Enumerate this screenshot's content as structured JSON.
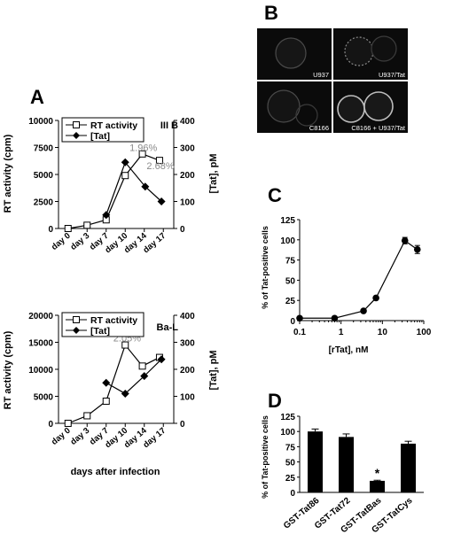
{
  "panels": {
    "A": {
      "label": "A"
    },
    "B": {
      "label": "B",
      "images": [
        "U937",
        "U937/Tat",
        "C8166",
        "C8166 + U937/Tat"
      ]
    },
    "C": {
      "label": "C"
    },
    "D": {
      "label": "D"
    }
  },
  "chart_data": [
    {
      "id": "A-top",
      "type": "line",
      "title": "III B",
      "categories": [
        "day 0",
        "day 3",
        "day 7",
        "day 10",
        "day 14",
        "day 17"
      ],
      "ylabel": "RT activity (cpm)",
      "ylim": [
        0,
        10000
      ],
      "yticks": [
        0,
        2500,
        5000,
        7500,
        10000
      ],
      "y2label": "[Tat], pM",
      "y2lim": [
        0,
        400
      ],
      "y2ticks": [
        0,
        100,
        200,
        300,
        400
      ],
      "legend": "top-left",
      "series": [
        {
          "name": "RT activity",
          "axis": "left",
          "marker": "open-square",
          "x": [
            0,
            1,
            2,
            3,
            3.9,
            4.8
          ],
          "values": [
            0,
            300,
            800,
            4900,
            6900,
            6300
          ]
        },
        {
          "name": "[Tat]",
          "axis": "right",
          "marker": "filled-diamond",
          "x": [
            2,
            3,
            4.05,
            4.9
          ],
          "values": [
            50,
            245,
            155,
            100
          ]
        }
      ],
      "annotations": [
        {
          "text": "1.96%",
          "x": 3.95,
          "y": 7500
        },
        {
          "text": "2.68%",
          "x": 4.85,
          "y": 5800
        }
      ]
    },
    {
      "id": "A-bottom",
      "type": "line",
      "title": "Ba-L",
      "categories": [
        "day 0",
        "day 3",
        "day 7",
        "day 10",
        "day 14",
        "day 17"
      ],
      "xlabel": "days after infection",
      "ylabel": "RT activity (cpm)",
      "ylim": [
        0,
        20000
      ],
      "yticks": [
        0,
        5000,
        10000,
        15000,
        20000
      ],
      "y2label": "[Tat], pM",
      "y2lim": [
        0,
        400
      ],
      "y2ticks": [
        0,
        100,
        200,
        300,
        400
      ],
      "legend": "top-left",
      "series": [
        {
          "name": "RT activity",
          "axis": "left",
          "marker": "open-square",
          "x": [
            0,
            1,
            2,
            3,
            3.9,
            4.8
          ],
          "values": [
            0,
            1400,
            4100,
            14500,
            10600,
            12200
          ]
        },
        {
          "name": "[Tat]",
          "axis": "right",
          "marker": "filled-diamond",
          "x": [
            2,
            3,
            4,
            4.9
          ],
          "values": [
            150,
            110,
            175,
            237
          ]
        }
      ],
      "annotations": [
        {
          "text": "2.05%",
          "x": 3.1,
          "y": 15800
        }
      ]
    },
    {
      "id": "C",
      "type": "line",
      "xlabel": "[rTat], nM",
      "xscale": "log",
      "xlim": [
        0.1,
        100
      ],
      "xticks": [
        0.1,
        1,
        10,
        100
      ],
      "ylabel": "% of Tat-positive cells",
      "ylim": [
        0,
        125
      ],
      "yticks": [
        0,
        25,
        50,
        75,
        100,
        125
      ],
      "series": [
        {
          "marker": "filled-circle",
          "errorbars": true,
          "x": [
            0.1,
            0.7,
            3.5,
            7,
            35,
            70
          ],
          "values": [
            3,
            3,
            12,
            28,
            99,
            88
          ],
          "error": [
            0,
            0,
            0,
            0,
            4,
            5
          ]
        }
      ]
    },
    {
      "id": "D",
      "type": "bar",
      "categories": [
        "GST-Tat86",
        "GST-Tat72",
        "GST-TatBas",
        "GST-TatCys"
      ],
      "values": [
        100,
        91,
        19,
        80
      ],
      "error": [
        4,
        5,
        1,
        4
      ],
      "ylabel": "% of Tat-positive cells",
      "ylim": [
        0,
        125
      ],
      "yticks": [
        0,
        25,
        50,
        75,
        100,
        125
      ],
      "annotations": [
        {
          "text": "*",
          "category": "GST-TatBas"
        }
      ]
    }
  ]
}
